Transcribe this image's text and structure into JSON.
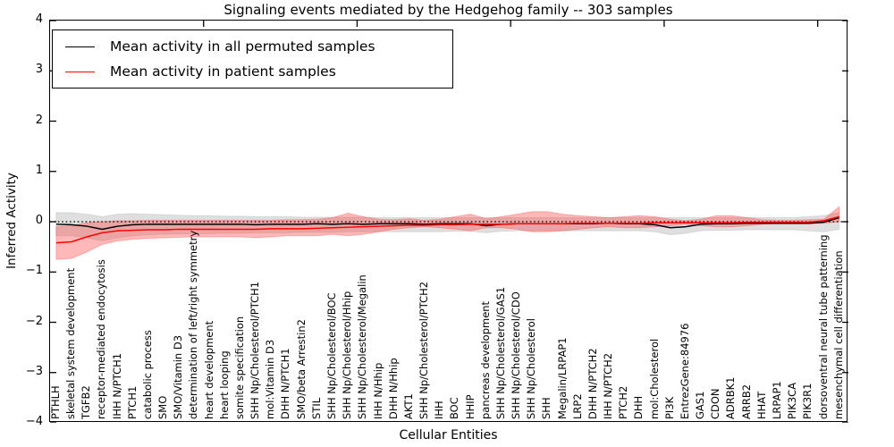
{
  "legend": [
    {
      "label": "Mean activity in all permuted samples",
      "color": "#000000"
    },
    {
      "label": "Mean activity in patient samples",
      "color": "#ff0000"
    }
  ],
  "chart_data": {
    "type": "line",
    "title": "Signaling events mediated by the Hedgehog family -- 303 samples",
    "xlabel": "Cellular Entities",
    "ylabel": "Inferred Activity",
    "ylim": [
      -4,
      4
    ],
    "yticks": [
      4,
      3,
      2,
      1,
      0,
      -1,
      -2,
      -3,
      -4
    ],
    "x_tick_positions": [
      10,
      20,
      30,
      40,
      50
    ],
    "grid": false,
    "legend_position": "upper left",
    "zero_line_style": "dotted",
    "categories": [
      "PTHLH",
      "skeletal system development",
      "TGFB2",
      "receptor-mediated endocytosis",
      "IHH N/PTCH1",
      "PTCH1",
      "catabolic process",
      "SMO",
      "SMO/Vitamin D3",
      "determination of left/right symmetry",
      "heart development",
      "heart looping",
      "somite specification",
      "SHH Np/Cholesterol/PTCH1",
      "mol:Vitamin D3",
      "DHH N/PTCH1",
      "SMO/beta Arrestin2",
      "STIL",
      "SHH Np/Cholesterol/BOC",
      "SHH Np/Cholesterol/Hhip",
      "SHH Np/Cholesterol/Megalin",
      "IHH N/Hhip",
      "DHH N/Hhip",
      "AKT1",
      "SHH Np/Cholesterol/PTCH2",
      "IHH",
      "BOC",
      "HHIP",
      "pancreas development",
      "SHH Np/Cholesterol/GAS1",
      "SHH Np/Cholesterol/CDO",
      "SHH Np/Cholesterol",
      "SHH",
      "Megalin/LRPAP1",
      "LRP2",
      "DHH N/PTCH2",
      "IHH N/PTCH2",
      "PTCH2",
      "DHH",
      "mol:Cholesterol",
      "PI3K",
      "EntrezGene:84976",
      "GAS1",
      "CDON",
      "ADRBK1",
      "ARRB2",
      "HHAT",
      "LRPAP1",
      "PIK3CA",
      "PIK3R1",
      "dorsoventral neural tube patterning",
      "mesenchymal cell differentiation"
    ],
    "series": [
      {
        "name": "Mean activity in all permuted samples",
        "color": "#000000",
        "band_color": "#b8b8b8",
        "band_opacity": 0.45,
        "values": [
          -0.05,
          -0.06,
          -0.09,
          -0.15,
          -0.09,
          -0.06,
          -0.05,
          -0.05,
          -0.05,
          -0.05,
          -0.05,
          -0.05,
          -0.05,
          -0.06,
          -0.05,
          -0.05,
          -0.05,
          -0.04,
          -0.05,
          -0.04,
          -0.05,
          -0.04,
          -0.04,
          -0.04,
          -0.05,
          -0.04,
          -0.04,
          -0.04,
          -0.08,
          -0.05,
          -0.04,
          -0.04,
          -0.04,
          -0.04,
          -0.04,
          -0.04,
          -0.03,
          -0.04,
          -0.04,
          -0.06,
          -0.12,
          -0.1,
          -0.05,
          -0.04,
          -0.04,
          -0.03,
          -0.03,
          -0.03,
          -0.03,
          -0.03,
          -0.01,
          0.08
        ],
        "band_upper": [
          0.18,
          0.18,
          0.15,
          0.1,
          0.15,
          0.16,
          0.15,
          0.14,
          0.13,
          0.12,
          0.12,
          0.11,
          0.11,
          0.1,
          0.1,
          0.1,
          0.09,
          0.09,
          0.09,
          0.09,
          0.09,
          0.08,
          0.08,
          0.08,
          0.08,
          0.08,
          0.08,
          0.08,
          0.08,
          0.08,
          0.08,
          0.08,
          0.08,
          0.08,
          0.08,
          0.08,
          0.08,
          0.08,
          0.08,
          0.08,
          0.08,
          0.08,
          0.08,
          0.08,
          0.08,
          0.08,
          0.08,
          0.08,
          0.08,
          0.1,
          0.12,
          0.18
        ],
        "band_lower": [
          -0.28,
          -0.28,
          -0.32,
          -0.38,
          -0.32,
          -0.28,
          -0.26,
          -0.25,
          -0.24,
          -0.24,
          -0.24,
          -0.23,
          -0.23,
          -0.22,
          -0.22,
          -0.22,
          -0.21,
          -0.21,
          -0.21,
          -0.2,
          -0.2,
          -0.2,
          -0.2,
          -0.2,
          -0.2,
          -0.2,
          -0.19,
          -0.19,
          -0.22,
          -0.19,
          -0.18,
          -0.18,
          -0.18,
          -0.18,
          -0.18,
          -0.18,
          -0.18,
          -0.18,
          -0.18,
          -0.2,
          -0.26,
          -0.23,
          -0.18,
          -0.17,
          -0.17,
          -0.16,
          -0.16,
          -0.16,
          -0.16,
          -0.18,
          -0.2,
          -0.15
        ]
      },
      {
        "name": "Mean activity in patient samples",
        "color": "#ff0000",
        "band_color": "#ff4444",
        "band_opacity": 0.38,
        "values": [
          -0.42,
          -0.4,
          -0.3,
          -0.22,
          -0.18,
          -0.17,
          -0.16,
          -0.16,
          -0.15,
          -0.15,
          -0.15,
          -0.15,
          -0.15,
          -0.15,
          -0.14,
          -0.14,
          -0.14,
          -0.13,
          -0.12,
          -0.11,
          -0.1,
          -0.09,
          -0.08,
          -0.07,
          -0.07,
          -0.06,
          -0.06,
          -0.05,
          -0.05,
          -0.05,
          -0.04,
          -0.04,
          -0.04,
          -0.04,
          -0.03,
          -0.03,
          -0.03,
          -0.03,
          -0.03,
          -0.02,
          -0.02,
          -0.02,
          -0.02,
          -0.02,
          -0.02,
          -0.01,
          -0.01,
          -0.01,
          -0.01,
          -0.01,
          0.02,
          0.1
        ],
        "band_upper": [
          -0.1,
          -0.08,
          -0.02,
          0.0,
          0.02,
          0.02,
          0.03,
          0.03,
          0.03,
          0.03,
          0.03,
          0.03,
          0.03,
          0.03,
          0.03,
          0.04,
          0.04,
          0.05,
          0.08,
          0.17,
          0.1,
          0.05,
          0.04,
          0.06,
          0.03,
          0.05,
          0.1,
          0.15,
          0.06,
          0.1,
          0.15,
          0.2,
          0.2,
          0.15,
          0.12,
          0.1,
          0.08,
          0.1,
          0.12,
          0.1,
          0.05,
          0.02,
          0.05,
          0.12,
          0.12,
          0.08,
          0.04,
          0.03,
          0.03,
          0.04,
          0.05,
          0.3
        ],
        "band_lower": [
          -0.75,
          -0.73,
          -0.6,
          -0.45,
          -0.38,
          -0.35,
          -0.33,
          -0.32,
          -0.31,
          -0.3,
          -0.3,
          -0.3,
          -0.3,
          -0.32,
          -0.3,
          -0.28,
          -0.28,
          -0.28,
          -0.25,
          -0.28,
          -0.25,
          -0.2,
          -0.15,
          -0.12,
          -0.1,
          -0.12,
          -0.15,
          -0.18,
          -0.12,
          -0.12,
          -0.15,
          -0.2,
          -0.2,
          -0.18,
          -0.15,
          -0.12,
          -0.1,
          -0.12,
          -0.12,
          -0.1,
          -0.08,
          -0.05,
          -0.08,
          -0.1,
          -0.1,
          -0.08,
          -0.05,
          -0.04,
          -0.04,
          -0.04,
          -0.03,
          0.0
        ]
      }
    ]
  }
}
